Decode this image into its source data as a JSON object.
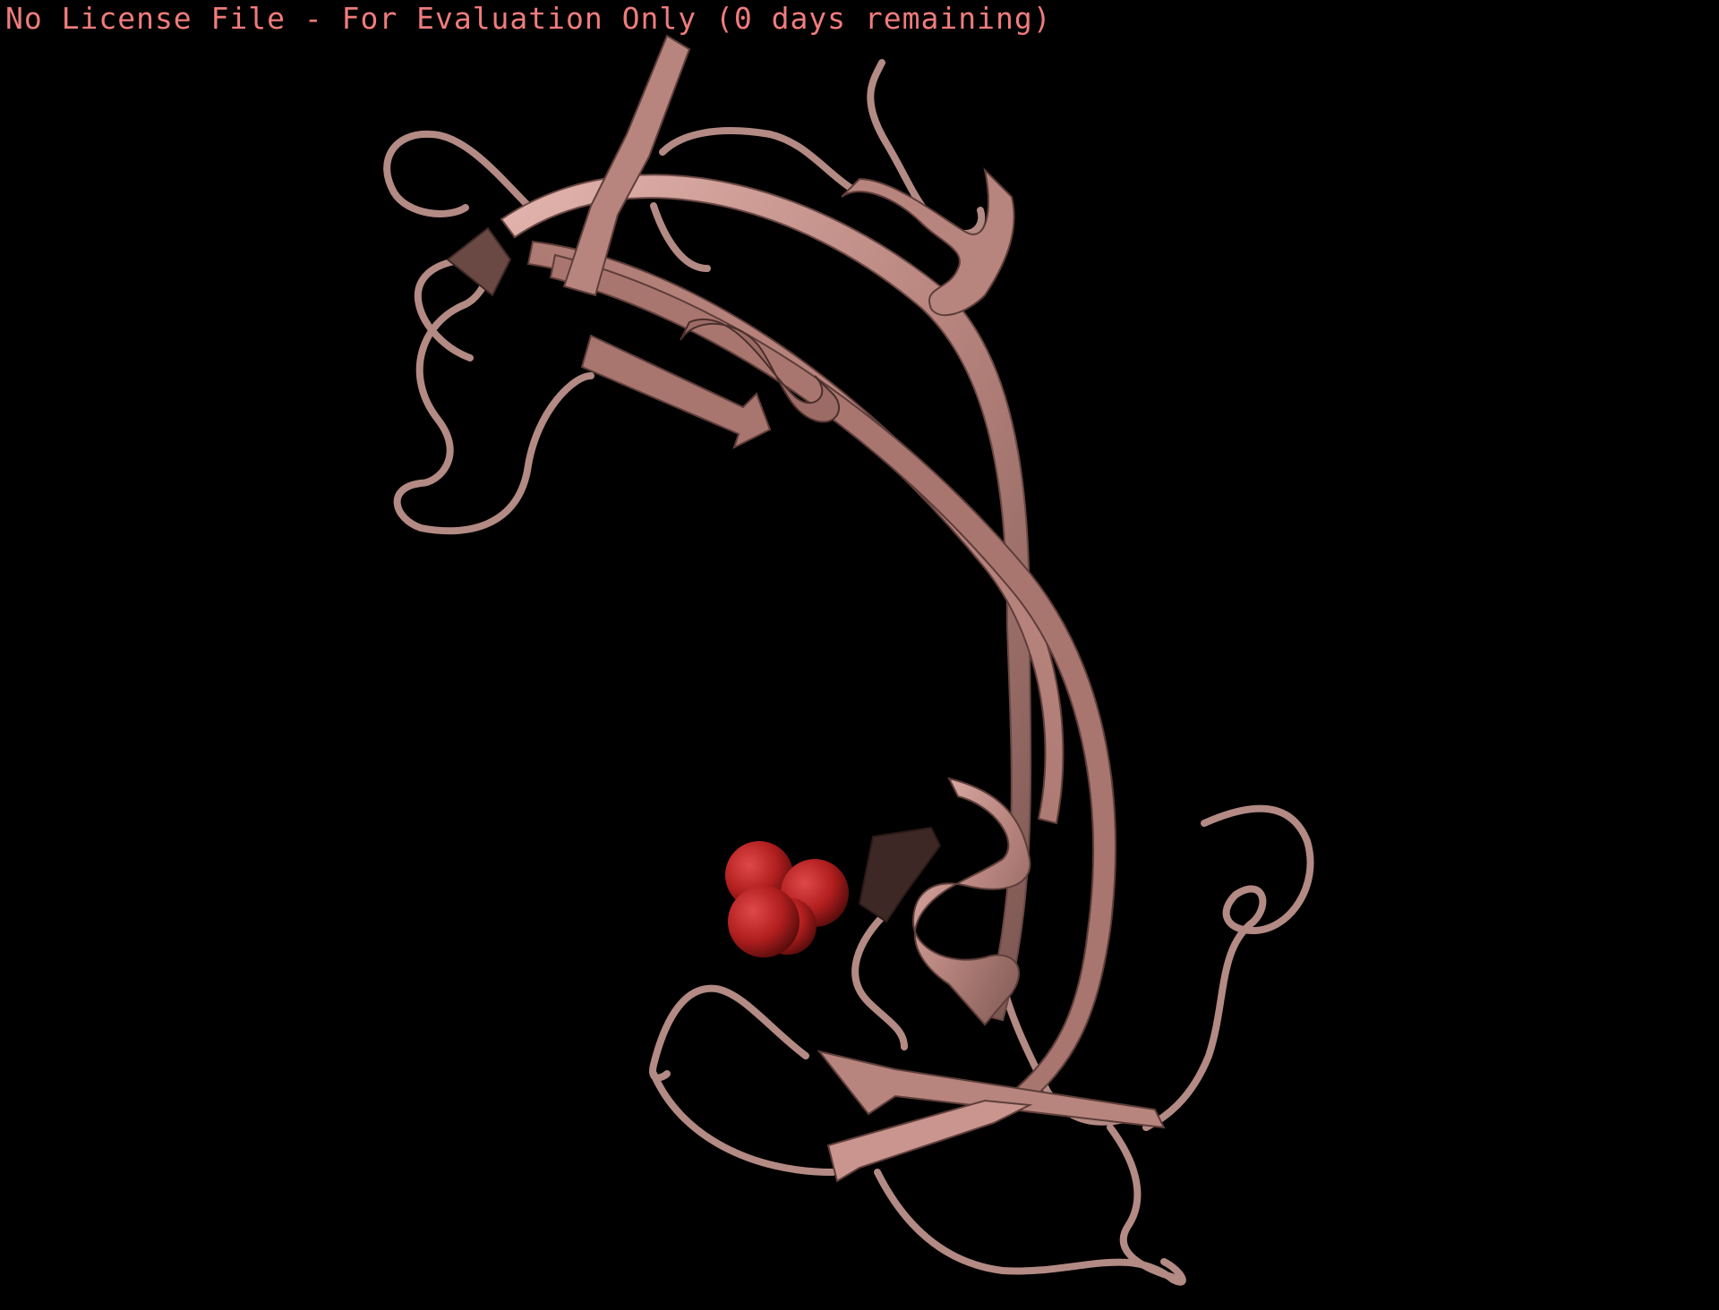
{
  "app": {
    "license_banner": "No License File - For Evaluation Only (0 days remaining)"
  },
  "viewport": {
    "background": "#000000",
    "representation": "cartoon",
    "ligand_representation": "spheres"
  },
  "colors": {
    "banner_text": "#f07c7c",
    "ribbon_base": "#b8857e",
    "ribbon_light": "#e3b5ae",
    "ribbon_dark": "#5e3e3a",
    "coil": "#b38a84",
    "oxygen": "#b01e1e",
    "sulfur": "#b8a030"
  },
  "icons": {
    "protein": "protein-cartoon-icon",
    "ligand": "sulfate-ion-icon"
  }
}
